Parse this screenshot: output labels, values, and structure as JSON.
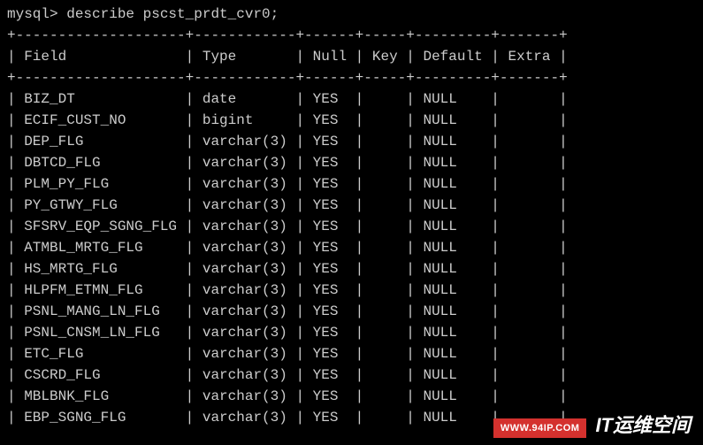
{
  "terminal": {
    "prompt": "mysql> describe pscst_prdt_cvr0;",
    "border_top": "+--------------------+------------+------+-----+---------+-------+",
    "border_mid": "+--------------------+------------+------+-----+---------+-------+",
    "header": {
      "field": "Field",
      "type": "Type",
      "null": "Null",
      "key": "Key",
      "default": "Default",
      "extra": "Extra"
    },
    "columns": {
      "field_width": 20,
      "type_width": 12,
      "null_width": 6,
      "key_width": 5,
      "default_width": 9,
      "extra_width": 7
    },
    "rows": [
      {
        "field": "BIZ_DT",
        "type": "date",
        "null": "YES",
        "key": "",
        "default": "NULL",
        "extra": ""
      },
      {
        "field": "ECIF_CUST_NO",
        "type": "bigint",
        "null": "YES",
        "key": "",
        "default": "NULL",
        "extra": ""
      },
      {
        "field": "DEP_FLG",
        "type": "varchar(3)",
        "null": "YES",
        "key": "",
        "default": "NULL",
        "extra": ""
      },
      {
        "field": "DBTCD_FLG",
        "type": "varchar(3)",
        "null": "YES",
        "key": "",
        "default": "NULL",
        "extra": ""
      },
      {
        "field": "PLM_PY_FLG",
        "type": "varchar(3)",
        "null": "YES",
        "key": "",
        "default": "NULL",
        "extra": ""
      },
      {
        "field": "PY_GTWY_FLG",
        "type": "varchar(3)",
        "null": "YES",
        "key": "",
        "default": "NULL",
        "extra": ""
      },
      {
        "field": "SFSRV_EQP_SGNG_FLG",
        "type": "varchar(3)",
        "null": "YES",
        "key": "",
        "default": "NULL",
        "extra": ""
      },
      {
        "field": "ATMBL_MRTG_FLG",
        "type": "varchar(3)",
        "null": "YES",
        "key": "",
        "default": "NULL",
        "extra": ""
      },
      {
        "field": "HS_MRTG_FLG",
        "type": "varchar(3)",
        "null": "YES",
        "key": "",
        "default": "NULL",
        "extra": ""
      },
      {
        "field": "HLPFM_ETMN_FLG",
        "type": "varchar(3)",
        "null": "YES",
        "key": "",
        "default": "NULL",
        "extra": ""
      },
      {
        "field": "PSNL_MANG_LN_FLG",
        "type": "varchar(3)",
        "null": "YES",
        "key": "",
        "default": "NULL",
        "extra": ""
      },
      {
        "field": "PSNL_CNSM_LN_FLG",
        "type": "varchar(3)",
        "null": "YES",
        "key": "",
        "default": "NULL",
        "extra": ""
      },
      {
        "field": "ETC_FLG",
        "type": "varchar(3)",
        "null": "YES",
        "key": "",
        "default": "NULL",
        "extra": ""
      },
      {
        "field": "CSCRD_FLG",
        "type": "varchar(3)",
        "null": "YES",
        "key": "",
        "default": "NULL",
        "extra": ""
      },
      {
        "field": "MBLBNK_FLG",
        "type": "varchar(3)",
        "null": "YES",
        "key": "",
        "default": "NULL",
        "extra": ""
      },
      {
        "field": "EBP_SGNG_FLG",
        "type": "varchar(3)",
        "null": "YES",
        "key": "",
        "default": "NULL",
        "extra": ""
      }
    ]
  },
  "watermark": {
    "red_text": "WWW.94IP.COM",
    "black_text": "IT运维空间"
  },
  "colors": {
    "background": "#000000",
    "text": "#cccccc",
    "banner_red": "#d4312e",
    "banner_text": "#ffffff"
  }
}
